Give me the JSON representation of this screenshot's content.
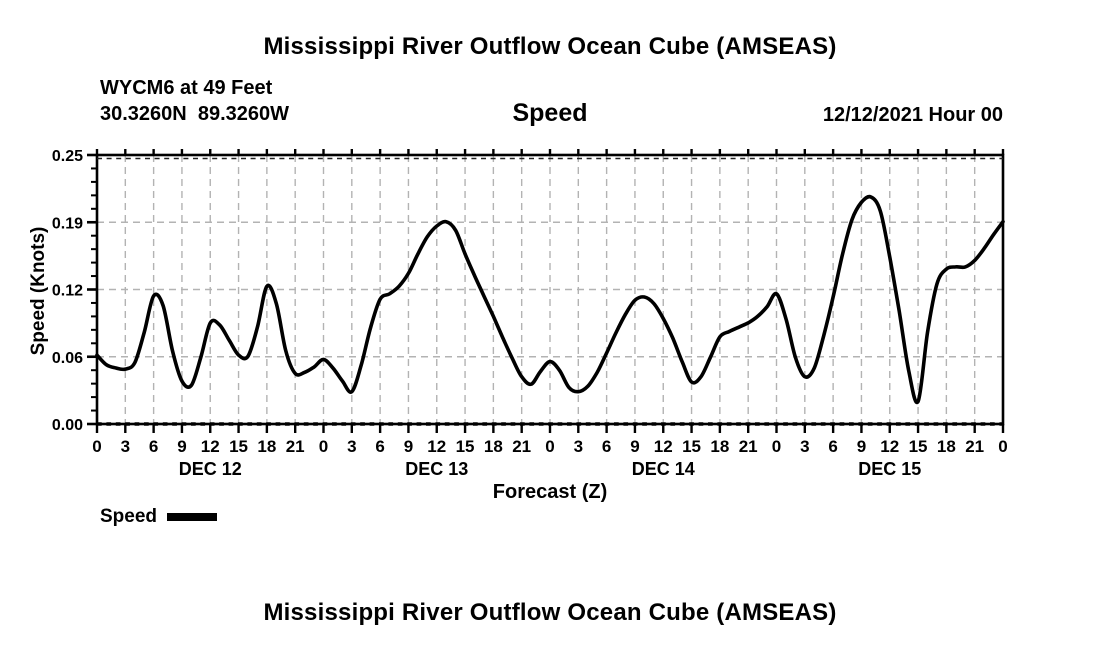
{
  "header": {
    "title": "Mississippi River Outflow Ocean Cube (AMSEAS)",
    "station_id_line": "WYCM6 at 49 Feet",
    "coordinates_line": "30.3260N  89.3260W",
    "variable_label": "Speed",
    "run_datetime": "12/12/2021 Hour 00"
  },
  "footer": {
    "next_chart_title": "Mississippi River Outflow Ocean Cube (AMSEAS)"
  },
  "legend": {
    "label": "Speed",
    "swatch_color": "#000000"
  },
  "colors": {
    "background": "#ffffff",
    "text": "#000000",
    "line": "#000000",
    "grid": "#b3b3b3",
    "frame": "#000000"
  },
  "chart_data": {
    "type": "line",
    "title": "Speed",
    "xlabel": "Forecast (Z)",
    "ylabel": "Speed (Knots)",
    "ylim": [
      0,
      0.25
    ],
    "grid": true,
    "legend_position": "bottom-left",
    "line_color": "#000000",
    "grid_color": "#b3b3b3",
    "y_ticks": [
      {
        "label": "0.00",
        "value": 0
      },
      {
        "label": "0.06",
        "value": 0.0625
      },
      {
        "label": "0.12",
        "value": 0.125
      },
      {
        "label": "0.19",
        "value": 0.1875
      },
      {
        "label": "0.25",
        "value": 0.25
      }
    ],
    "x_hour_step": 3,
    "x_tick_labels": [
      "0",
      "3",
      "6",
      "9",
      "12",
      "15",
      "18",
      "21",
      "0",
      "3",
      "6",
      "9",
      "12",
      "15",
      "18",
      "21",
      "0",
      "3",
      "6",
      "9",
      "12",
      "15",
      "18",
      "21",
      "0",
      "3",
      "6",
      "9",
      "12",
      "15",
      "18",
      "21",
      "0"
    ],
    "day_labels": [
      {
        "label": "DEC 12",
        "center_hour": 12
      },
      {
        "label": "DEC 13",
        "center_hour": 36
      },
      {
        "label": "DEC 14",
        "center_hour": 60
      },
      {
        "label": "DEC 15",
        "center_hour": 84
      }
    ],
    "series": [
      {
        "name": "Speed",
        "units": "knots",
        "x_start_hour": 0,
        "x_step_hours": 1,
        "values": [
          0.064,
          0.055,
          0.052,
          0.051,
          0.057,
          0.085,
          0.119,
          0.11,
          0.068,
          0.04,
          0.036,
          0.062,
          0.094,
          0.092,
          0.078,
          0.064,
          0.063,
          0.09,
          0.128,
          0.112,
          0.068,
          0.047,
          0.048,
          0.053,
          0.06,
          0.052,
          0.04,
          0.03,
          0.055,
          0.09,
          0.116,
          0.121,
          0.128,
          0.14,
          0.158,
          0.174,
          0.184,
          0.188,
          0.18,
          0.158,
          0.138,
          0.119,
          0.1,
          0.08,
          0.061,
          0.044,
          0.037,
          0.049,
          0.058,
          0.05,
          0.034,
          0.03,
          0.035,
          0.048,
          0.066,
          0.085,
          0.102,
          0.115,
          0.118,
          0.112,
          0.098,
          0.08,
          0.058,
          0.039,
          0.044,
          0.062,
          0.081,
          0.086,
          0.09,
          0.094,
          0.1,
          0.109,
          0.121,
          0.098,
          0.062,
          0.044,
          0.052,
          0.082,
          0.118,
          0.158,
          0.19,
          0.206,
          0.211,
          0.198,
          0.155,
          0.105,
          0.05,
          0.021,
          0.085,
          0.13,
          0.144,
          0.146,
          0.146,
          0.152,
          0.163,
          0.176,
          0.188
        ]
      }
    ]
  }
}
